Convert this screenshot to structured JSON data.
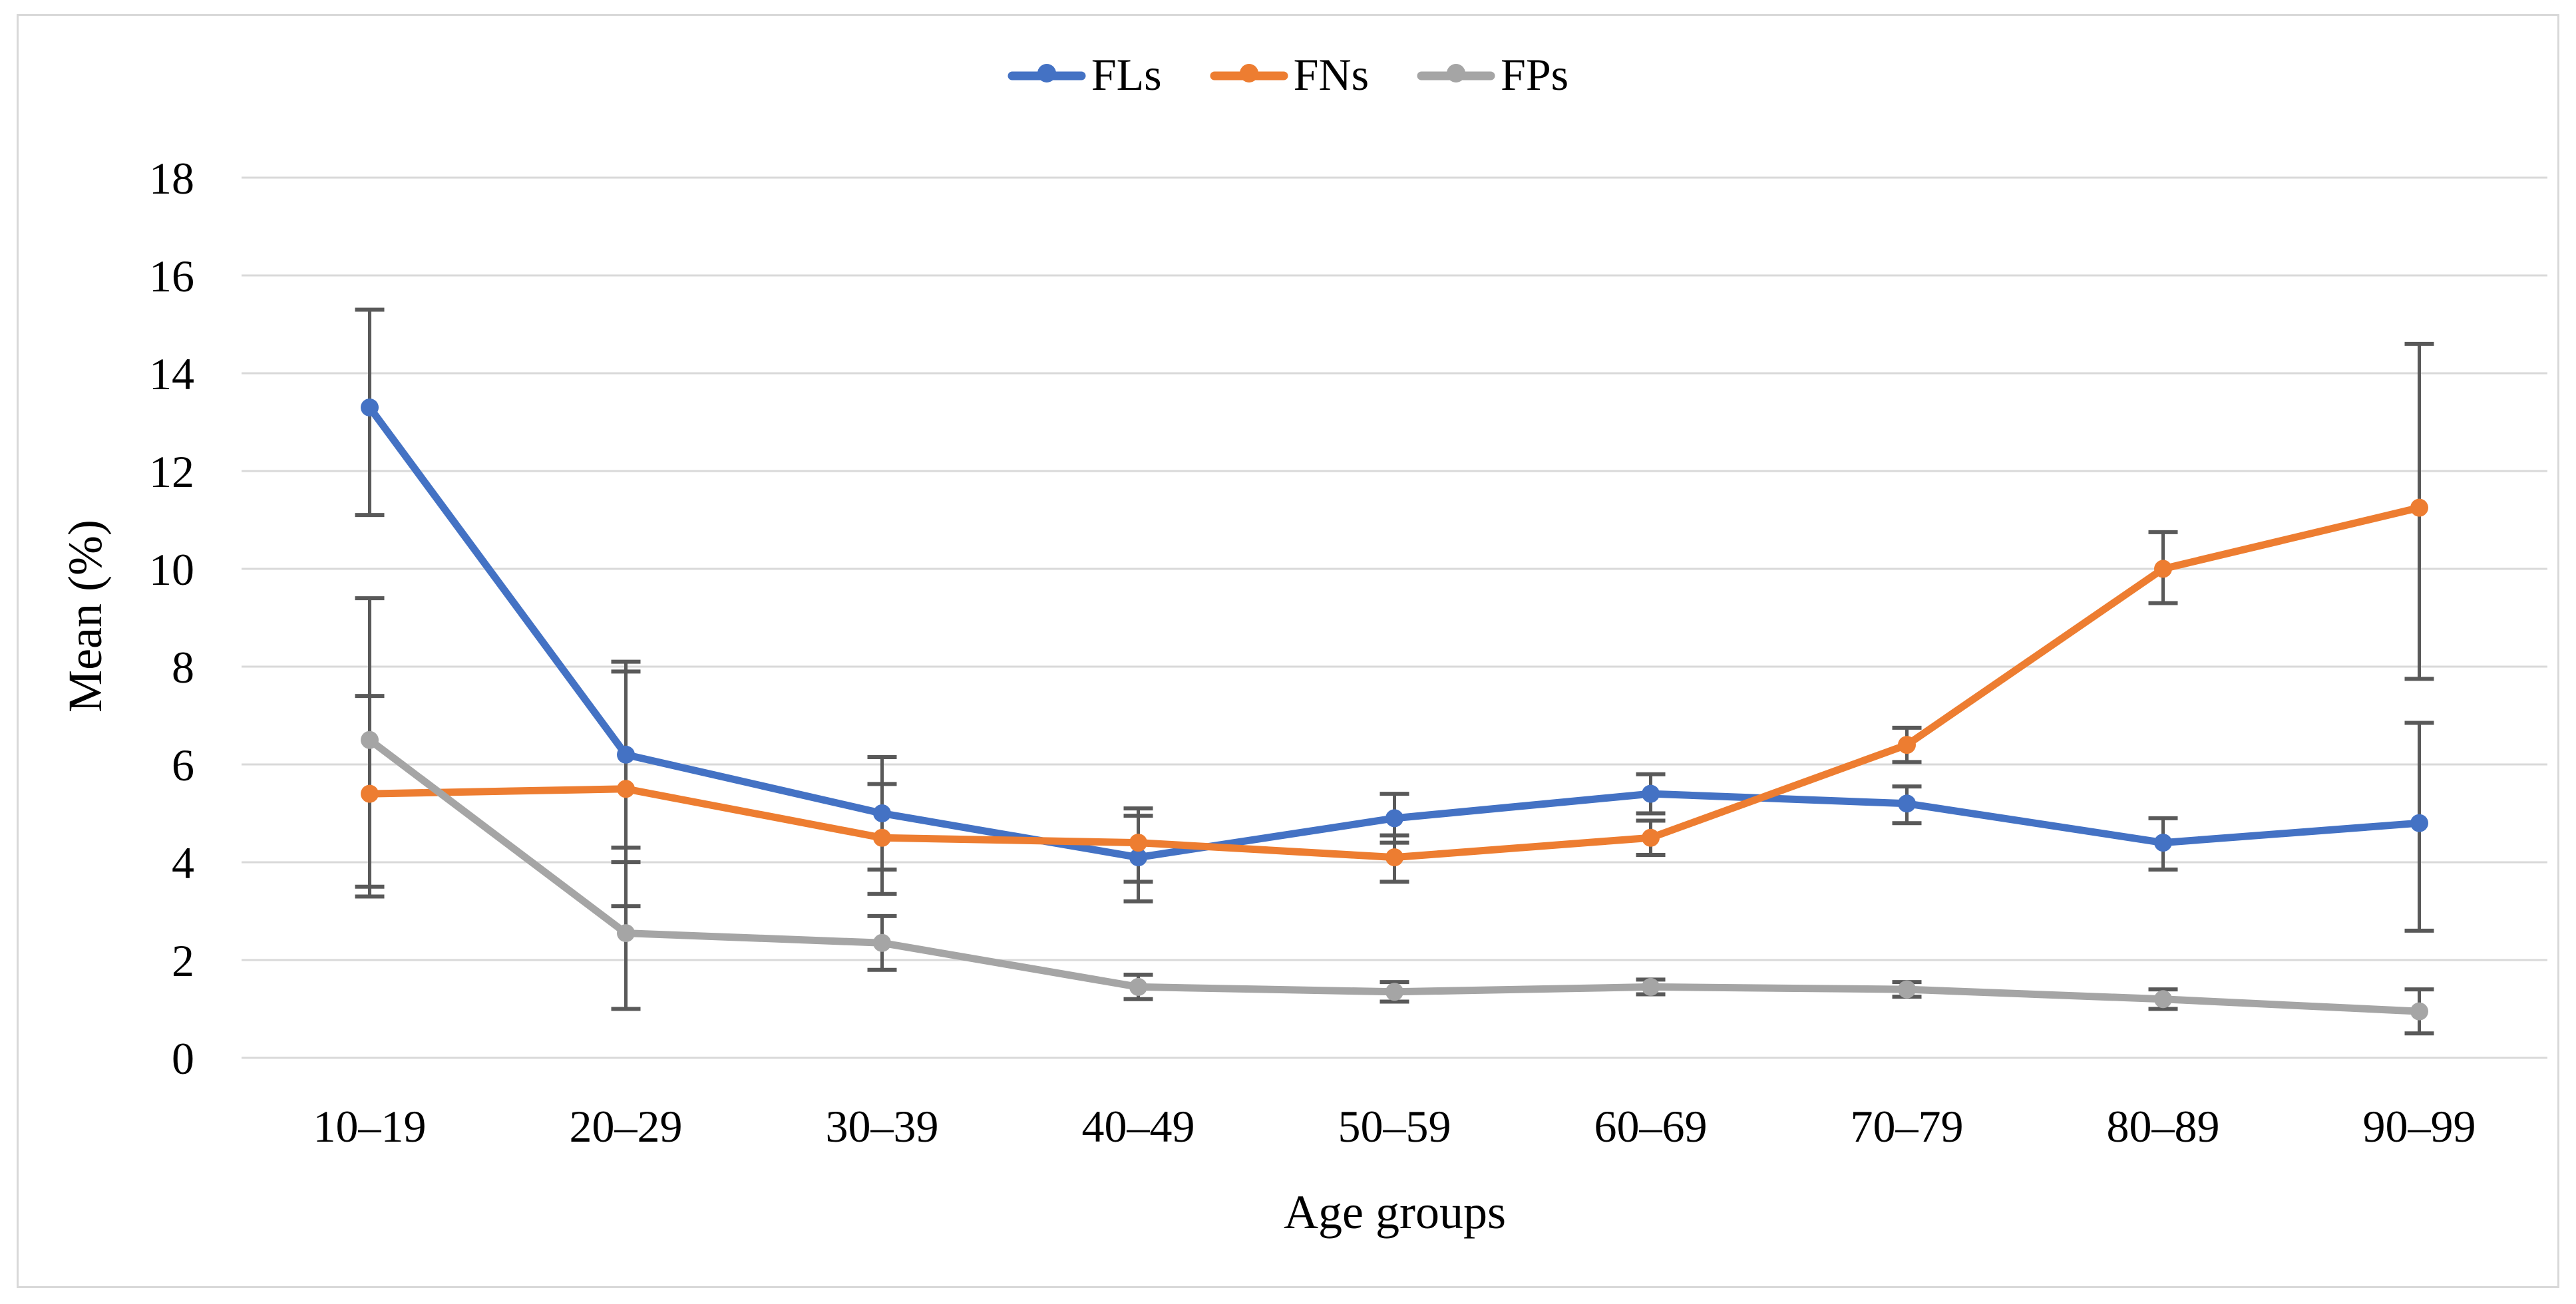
{
  "figure": {
    "background_color": "#FFFFFF",
    "border_color": "#D9D9D9",
    "text_color": "#000000"
  },
  "chart_data": {
    "type": "line",
    "title": "",
    "xlabel": "Age groups",
    "ylabel": "Mean (%)",
    "categories": [
      "10–19",
      "20–29",
      "30–39",
      "40–49",
      "50–59",
      "60–69",
      "70–79",
      "80–89",
      "90–99"
    ],
    "yticks": [
      0,
      2,
      4,
      6,
      8,
      10,
      12,
      14,
      16,
      18
    ],
    "ylim": [
      0,
      18
    ],
    "grid": true,
    "gridline_color": "#D9D9D9",
    "error_bar_color": "#595959",
    "legend_position": "top-center",
    "marker_style": "circle",
    "series": [
      {
        "name": "FLs",
        "color": "#4472C4",
        "values": [
          13.3,
          6.2,
          5.0,
          4.1,
          4.9,
          5.4,
          5.2,
          4.4,
          4.8
        ],
        "error_low": [
          11.1,
          4.3,
          3.85,
          3.2,
          4.4,
          5.0,
          4.8,
          3.85,
          2.6
        ],
        "error_high": [
          15.3,
          8.1,
          6.15,
          4.95,
          5.4,
          5.8,
          5.55,
          4.9,
          6.85
        ]
      },
      {
        "name": "FNs",
        "color": "#ED7D31",
        "values": [
          5.4,
          5.5,
          4.5,
          4.4,
          4.1,
          4.5,
          6.4,
          10.0,
          11.25
        ],
        "error_low": [
          3.5,
          3.1,
          3.35,
          3.6,
          3.6,
          4.15,
          6.05,
          9.3,
          7.75
        ],
        "error_high": [
          7.4,
          7.9,
          5.6,
          5.1,
          4.55,
          4.85,
          6.75,
          10.75,
          14.6
        ]
      },
      {
        "name": "FPs",
        "color": "#A5A5A5",
        "values": [
          6.5,
          2.55,
          2.35,
          1.45,
          1.35,
          1.45,
          1.4,
          1.2,
          0.95
        ],
        "error_low": [
          3.3,
          1.0,
          1.8,
          1.2,
          1.15,
          1.3,
          1.25,
          1.0,
          0.5
        ],
        "error_high": [
          9.4,
          4.0,
          2.9,
          1.7,
          1.55,
          1.6,
          1.55,
          1.4,
          1.4
        ]
      }
    ]
  }
}
